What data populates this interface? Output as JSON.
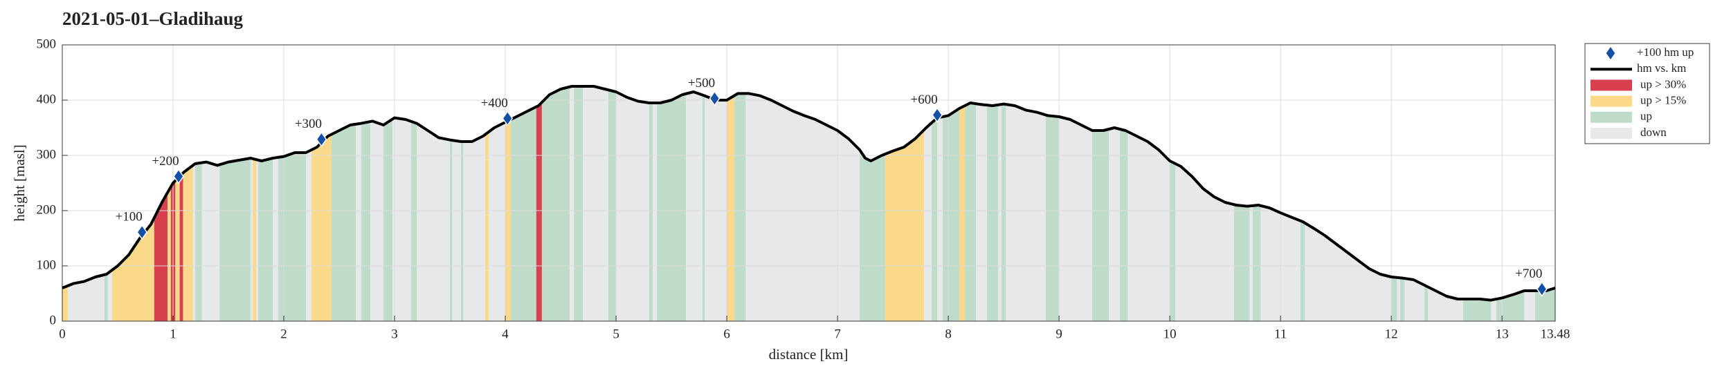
{
  "chart_data": {
    "type": "area",
    "title": "2021-05-01–Gladihaug",
    "xlabel": "distance [km]",
    "ylabel": "height [masl]",
    "xlim": [
      0,
      13.48
    ],
    "ylim": [
      0,
      500
    ],
    "xticks": [
      0,
      1,
      2,
      3,
      4,
      5,
      6,
      7,
      8,
      9,
      10,
      11,
      12,
      13,
      13.48
    ],
    "yticks": [
      0,
      100,
      200,
      300,
      400,
      500
    ],
    "grid": true,
    "legend": "outside-right",
    "series": [
      {
        "name": "hm vs. km",
        "color": "#000000",
        "x": [
          0,
          0.1,
          0.2,
          0.3,
          0.4,
          0.5,
          0.6,
          0.7,
          0.8,
          0.9,
          1.0,
          1.1,
          1.2,
          1.3,
          1.4,
          1.5,
          1.7,
          1.8,
          1.9,
          2.0,
          2.1,
          2.2,
          2.3,
          2.4,
          2.5,
          2.6,
          2.7,
          2.8,
          2.9,
          3.0,
          3.1,
          3.2,
          3.3,
          3.4,
          3.5,
          3.6,
          3.7,
          3.8,
          3.9,
          4.0,
          4.1,
          4.2,
          4.3,
          4.4,
          4.5,
          4.6,
          4.7,
          4.8,
          4.9,
          5.0,
          5.1,
          5.2,
          5.3,
          5.4,
          5.5,
          5.6,
          5.7,
          5.8,
          5.9,
          6.0,
          6.1,
          6.2,
          6.3,
          6.4,
          6.5,
          6.6,
          6.7,
          6.8,
          6.9,
          7.0,
          7.1,
          7.2,
          7.25,
          7.3,
          7.4,
          7.5,
          7.6,
          7.7,
          7.8,
          7.9,
          8.0,
          8.1,
          8.2,
          8.3,
          8.4,
          8.5,
          8.6,
          8.7,
          8.8,
          8.9,
          9.0,
          9.1,
          9.2,
          9.3,
          9.4,
          9.5,
          9.6,
          9.7,
          9.8,
          9.9,
          10.0,
          10.1,
          10.2,
          10.3,
          10.4,
          10.5,
          10.6,
          10.7,
          10.8,
          10.9,
          11.0,
          11.1,
          11.2,
          11.3,
          11.4,
          11.5,
          11.6,
          11.7,
          11.8,
          11.9,
          12.0,
          12.1,
          12.2,
          12.3,
          12.4,
          12.5,
          12.6,
          12.7,
          12.8,
          12.9,
          13.0,
          13.1,
          13.2,
          13.3,
          13.4,
          13.48
        ],
        "values": [
          60,
          68,
          72,
          80,
          85,
          100,
          120,
          150,
          175,
          215,
          250,
          270,
          285,
          288,
          282,
          288,
          295,
          290,
          295,
          298,
          305,
          305,
          315,
          335,
          345,
          355,
          358,
          362,
          355,
          368,
          365,
          358,
          345,
          332,
          328,
          325,
          325,
          335,
          350,
          360,
          370,
          380,
          390,
          410,
          420,
          425,
          425,
          425,
          420,
          415,
          405,
          398,
          395,
          395,
          400,
          410,
          415,
          408,
          400,
          400,
          412,
          412,
          408,
          400,
          390,
          380,
          372,
          365,
          355,
          345,
          330,
          310,
          295,
          290,
          300,
          308,
          315,
          330,
          350,
          368,
          372,
          385,
          395,
          392,
          390,
          393,
          390,
          382,
          378,
          372,
          370,
          365,
          355,
          345,
          345,
          350,
          345,
          335,
          325,
          310,
          290,
          280,
          262,
          240,
          225,
          215,
          210,
          208,
          210,
          205,
          196,
          188,
          180,
          168,
          155,
          140,
          125,
          110,
          95,
          85,
          80,
          78,
          75,
          65,
          55,
          45,
          40,
          40,
          40,
          38,
          42,
          48,
          55,
          55,
          55,
          60
        ]
      }
    ],
    "markers": {
      "name": "+100 hm up",
      "color": "#1450a8",
      "x": [
        0.72,
        1.05,
        2.34,
        4.02,
        5.89,
        7.9,
        13.36
      ],
      "values": [
        161,
        262,
        329,
        367,
        403,
        373,
        58
      ],
      "labels": [
        "+100",
        "+200",
        "+300",
        "+400",
        "+500",
        "+600",
        "+700"
      ]
    },
    "bands": [
      {
        "name": "up > 30%",
        "color": "#d9404f",
        "ranges": [
          [
            0.83,
            0.95
          ],
          [
            0.98,
            1.02
          ],
          [
            1.06,
            1.09
          ],
          [
            4.28,
            4.33
          ]
        ]
      },
      {
        "name": "up > 15%",
        "color": "#fbd98a",
        "ranges": [
          [
            0,
            0.05
          ],
          [
            0.45,
            0.83
          ],
          [
            0.95,
            0.98
          ],
          [
            1.02,
            1.06
          ],
          [
            1.09,
            1.18
          ],
          [
            1.72,
            1.75
          ],
          [
            2.25,
            2.43
          ],
          [
            3.82,
            3.85
          ],
          [
            4.0,
            4.05
          ],
          [
            6.0,
            6.07
          ],
          [
            7.43,
            7.78
          ],
          [
            8.1,
            8.15
          ]
        ]
      },
      {
        "name": "up",
        "color": "#bfdccb",
        "ranges": [
          [
            0.38,
            0.41
          ],
          [
            1.2,
            1.26
          ],
          [
            1.42,
            1.7
          ],
          [
            1.77,
            1.9
          ],
          [
            1.95,
            2.2
          ],
          [
            2.43,
            2.65
          ],
          [
            2.7,
            2.78
          ],
          [
            2.9,
            2.98
          ],
          [
            3.15,
            3.2
          ],
          [
            3.5,
            3.52
          ],
          [
            3.6,
            3.62
          ],
          [
            4.05,
            4.28
          ],
          [
            4.33,
            4.58
          ],
          [
            4.62,
            4.7
          ],
          [
            4.93,
            5.0
          ],
          [
            5.3,
            5.33
          ],
          [
            5.37,
            5.63
          ],
          [
            5.78,
            5.8
          ],
          [
            6.07,
            6.17
          ],
          [
            7.2,
            7.43
          ],
          [
            7.85,
            7.9
          ],
          [
            7.95,
            8.1
          ],
          [
            8.15,
            8.25
          ],
          [
            8.35,
            8.45
          ],
          [
            8.48,
            8.52
          ],
          [
            8.88,
            9.0
          ],
          [
            9.3,
            9.45
          ],
          [
            9.55,
            9.62
          ],
          [
            10.0,
            10.05
          ],
          [
            10.58,
            10.72
          ],
          [
            10.75,
            10.82
          ],
          [
            11.18,
            11.22
          ],
          [
            12.0,
            12.05
          ],
          [
            12.08,
            12.12
          ],
          [
            12.3,
            12.33
          ],
          [
            12.65,
            12.9
          ],
          [
            12.95,
            13.2
          ],
          [
            13.3,
            13.48
          ]
        ]
      },
      {
        "name": "down",
        "color": "#e6e8ea",
        "ranges": [
          [
            0,
            13.48
          ]
        ]
      }
    ]
  }
}
